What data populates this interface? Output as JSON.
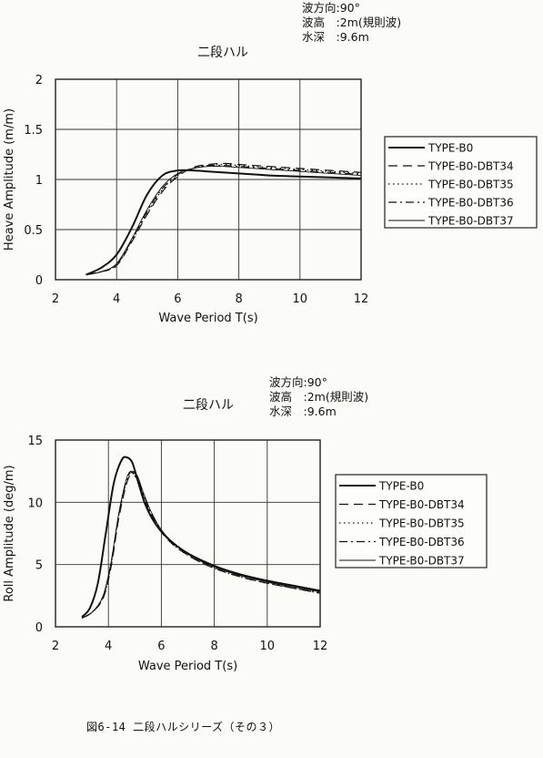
{
  "chart_data": [
    {
      "type": "line",
      "title": "二段ハル",
      "conditions": [
        "波方向:90°",
        "波高　:2m(規則波)",
        "水深　:9.6m"
      ],
      "xlabel": "Wave Period  T(s)",
      "ylabel": "Heave Amplitude (m/m)",
      "xlim": [
        2,
        12
      ],
      "ylim": [
        0,
        2
      ],
      "xticks": [
        "2",
        "4",
        "6",
        "8",
        "10",
        "12"
      ],
      "yticks": [
        "0",
        "0.5",
        "1",
        "1.5",
        "2"
      ],
      "grid": true,
      "legend_position": "right",
      "series": [
        {
          "name": "TYPE-B0",
          "x": [
            3.0,
            3.5,
            4.0,
            4.5,
            5.0,
            5.5,
            6.0,
            6.5,
            7.0,
            8.0,
            9.0,
            10.0,
            11.0,
            12.0
          ],
          "y": [
            0.05,
            0.12,
            0.25,
            0.52,
            0.85,
            1.04,
            1.09,
            1.09,
            1.08,
            1.06,
            1.04,
            1.03,
            1.02,
            1.01
          ]
        },
        {
          "name": "TYPE-B0-DBT34",
          "x": [
            3.0,
            3.5,
            4.0,
            4.5,
            5.0,
            5.5,
            6.0,
            6.5,
            7.0,
            7.5,
            8.0,
            9.0,
            10.0,
            11.0,
            12.0
          ],
          "y": [
            0.05,
            0.08,
            0.14,
            0.38,
            0.65,
            0.88,
            1.03,
            1.12,
            1.15,
            1.16,
            1.15,
            1.13,
            1.11,
            1.09,
            1.07
          ]
        },
        {
          "name": "TYPE-B0-DBT35",
          "x": [
            3.0,
            3.5,
            4.0,
            4.5,
            5.0,
            5.5,
            6.0,
            6.5,
            7.0,
            7.5,
            8.0,
            9.0,
            10.0,
            11.0,
            12.0
          ],
          "y": [
            0.05,
            0.08,
            0.15,
            0.39,
            0.66,
            0.9,
            1.04,
            1.11,
            1.14,
            1.15,
            1.14,
            1.12,
            1.1,
            1.08,
            1.06
          ]
        },
        {
          "name": "TYPE-B0-DBT36",
          "x": [
            3.0,
            3.5,
            4.0,
            4.5,
            5.0,
            5.5,
            6.0,
            6.5,
            7.0,
            7.5,
            8.0,
            9.0,
            10.0,
            11.0,
            12.0
          ],
          "y": [
            0.05,
            0.08,
            0.15,
            0.4,
            0.68,
            0.91,
            1.05,
            1.11,
            1.14,
            1.14,
            1.13,
            1.11,
            1.09,
            1.07,
            1.05
          ]
        },
        {
          "name": "TYPE-B0-DBT37",
          "x": [
            3.0,
            3.5,
            4.0,
            4.5,
            5.0,
            5.5,
            6.0,
            6.5,
            7.0,
            7.5,
            8.0,
            9.0,
            10.0,
            11.0,
            12.0
          ],
          "y": [
            0.05,
            0.08,
            0.16,
            0.41,
            0.7,
            0.93,
            1.06,
            1.11,
            1.13,
            1.13,
            1.12,
            1.1,
            1.08,
            1.06,
            1.04
          ]
        }
      ]
    },
    {
      "type": "line",
      "title": "二段ハル",
      "conditions": [
        "波方向:90°",
        "波高　:2m(規則波)",
        "水深　:9.6m"
      ],
      "xlabel": "Wave Period  T(s)",
      "ylabel": "Roll Amplitude (deg/m)",
      "xlim": [
        2,
        12
      ],
      "ylim": [
        0,
        15
      ],
      "xticks": [
        "2",
        "4",
        "6",
        "8",
        "10",
        "12"
      ],
      "yticks": [
        "0",
        "5",
        "10",
        "15"
      ],
      "grid": true,
      "legend_position": "right",
      "series": [
        {
          "name": "TYPE-B0",
          "x": [
            3.0,
            3.3,
            3.6,
            3.9,
            4.2,
            4.5,
            4.7,
            4.9,
            5.1,
            5.4,
            5.8,
            6.3,
            7.0,
            8.0,
            9.0,
            10.0,
            11.0,
            12.0
          ],
          "y": [
            0.8,
            1.5,
            3.5,
            7.5,
            11.5,
            13.4,
            13.6,
            13.2,
            11.8,
            9.8,
            8.2,
            7.0,
            5.9,
            4.9,
            4.2,
            3.7,
            3.3,
            2.9
          ]
        },
        {
          "name": "TYPE-B0-DBT34",
          "x": [
            3.0,
            3.4,
            3.8,
            4.1,
            4.4,
            4.7,
            4.9,
            5.1,
            5.3,
            5.6,
            6.0,
            6.5,
            7.2,
            8.0,
            9.0,
            10.0,
            11.0,
            12.0
          ],
          "y": [
            0.7,
            1.2,
            2.3,
            4.8,
            8.8,
            11.6,
            12.2,
            11.8,
            10.6,
            9.0,
            7.6,
            6.5,
            5.5,
            4.7,
            4.0,
            3.5,
            3.1,
            2.7
          ]
        },
        {
          "name": "TYPE-B0-DBT35",
          "x": [
            3.0,
            3.4,
            3.8,
            4.1,
            4.4,
            4.7,
            4.9,
            5.1,
            5.3,
            5.6,
            6.0,
            6.5,
            7.2,
            8.0,
            9.0,
            10.0,
            11.0,
            12.0
          ],
          "y": [
            0.7,
            1.2,
            2.4,
            5.0,
            9.0,
            11.8,
            12.3,
            11.9,
            10.7,
            9.1,
            7.7,
            6.5,
            5.5,
            4.7,
            4.0,
            3.5,
            3.1,
            2.7
          ]
        },
        {
          "name": "TYPE-B0-DBT36",
          "x": [
            3.0,
            3.4,
            3.8,
            4.1,
            4.4,
            4.7,
            4.9,
            5.1,
            5.3,
            5.6,
            6.0,
            6.5,
            7.2,
            8.0,
            9.0,
            10.0,
            11.0,
            12.0
          ],
          "y": [
            0.7,
            1.2,
            2.4,
            5.1,
            9.1,
            11.9,
            12.4,
            12.0,
            10.8,
            9.2,
            7.7,
            6.6,
            5.6,
            4.8,
            4.1,
            3.6,
            3.1,
            2.8
          ]
        },
        {
          "name": "TYPE-B0-DBT37",
          "x": [
            3.0,
            3.4,
            3.8,
            4.1,
            4.4,
            4.7,
            4.9,
            5.1,
            5.3,
            5.6,
            6.0,
            6.5,
            7.2,
            8.0,
            9.0,
            10.0,
            11.0,
            12.0
          ],
          "y": [
            0.7,
            1.2,
            2.5,
            5.2,
            9.2,
            12.0,
            12.5,
            12.1,
            10.9,
            9.3,
            7.8,
            6.6,
            5.6,
            4.8,
            4.1,
            3.6,
            3.2,
            2.8
          ]
        }
      ]
    }
  ],
  "caption": "図6-14 二段ハルシリーズ（その３）"
}
